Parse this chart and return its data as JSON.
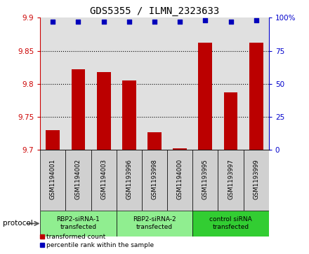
{
  "title": "GDS5355 / ILMN_2323633",
  "samples": [
    "GSM1194001",
    "GSM1194002",
    "GSM1194003",
    "GSM1193996",
    "GSM1193998",
    "GSM1194000",
    "GSM1193995",
    "GSM1193997",
    "GSM1193999"
  ],
  "transformed_counts": [
    9.73,
    9.822,
    9.818,
    9.805,
    9.727,
    9.702,
    9.862,
    9.787,
    9.862
  ],
  "percentile_ranks": [
    97,
    97,
    97,
    97,
    97,
    97,
    98,
    97,
    98
  ],
  "ylim_left": [
    9.7,
    9.9
  ],
  "ylim_right": [
    0,
    100
  ],
  "yticks_left": [
    9.7,
    9.75,
    9.8,
    9.85,
    9.9
  ],
  "yticks_right": [
    0,
    25,
    50,
    75,
    100
  ],
  "groups": [
    {
      "label": "RBP2-siRNA-1\ntransfected",
      "start": 0,
      "end": 3,
      "color": "#90EE90"
    },
    {
      "label": "RBP2-siRNA-2\ntransfected",
      "start": 3,
      "end": 6,
      "color": "#90EE90"
    },
    {
      "label": "control siRNA\ntransfected",
      "start": 6,
      "end": 9,
      "color": "#32CD32"
    }
  ],
  "bar_color": "#BB0000",
  "dot_color": "#0000BB",
  "bar_width": 0.55,
  "protocol_label": "protocol",
  "background_color": "#ffffff",
  "plot_bg_color": "#e0e0e0",
  "sample_box_color": "#d0d0d0",
  "left_tick_color": "#CC0000",
  "right_tick_color": "#0000CC",
  "legend_items": [
    {
      "label": "transformed count",
      "color": "#BB0000"
    },
    {
      "label": "percentile rank within the sample",
      "color": "#0000BB"
    }
  ]
}
